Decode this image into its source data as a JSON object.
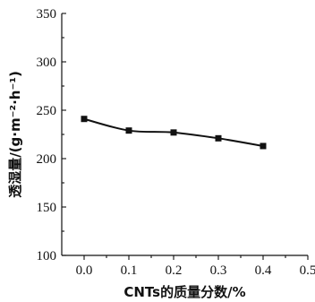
{
  "chart_data": {
    "type": "line",
    "xlabel": "CNTs的质量分数/%",
    "ylabel": "透湿量/(g·m⁻²·h⁻¹)",
    "xlim": [
      -0.05,
      0.5
    ],
    "ylim": [
      100,
      350
    ],
    "x_ticks": [
      0.0,
      0.1,
      0.2,
      0.3,
      0.4,
      0.5
    ],
    "x_tick_labels": [
      "0.0",
      "0.1",
      "0.2",
      "0.3",
      "0.4",
      "0.5"
    ],
    "y_ticks": [
      100,
      150,
      200,
      250,
      300,
      350
    ],
    "y_tick_labels": [
      "100",
      "150",
      "200",
      "250",
      "300",
      "350"
    ],
    "grid": false,
    "series": [
      {
        "x": [
          0.0,
          0.1,
          0.2,
          0.3,
          0.4
        ],
        "values": [
          241,
          229,
          227,
          221,
          213
        ],
        "marker": "square",
        "color": "#111111"
      }
    ]
  }
}
